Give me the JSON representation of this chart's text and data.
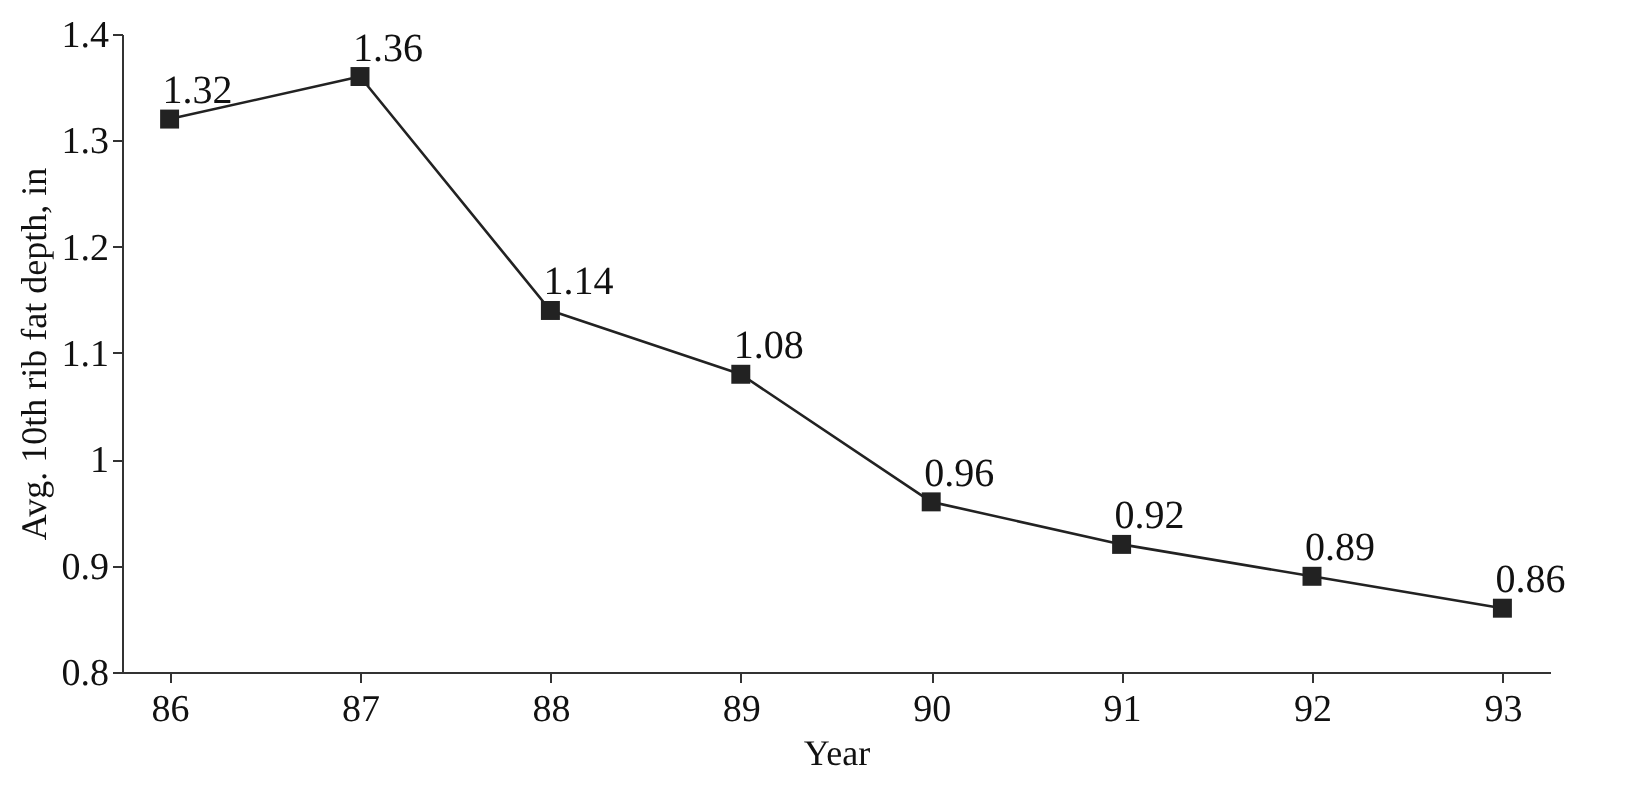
{
  "chart_data": {
    "type": "line",
    "xlabel": "Year",
    "ylabel": "Avg. 10th rib fat depth, in",
    "categories": [
      "86",
      "87",
      "88",
      "89",
      "90",
      "91",
      "92",
      "93"
    ],
    "series": [
      {
        "color": "#222222",
        "values": [
          1.32,
          1.36,
          1.14,
          1.08,
          0.96,
          0.92,
          0.89,
          0.86
        ]
      }
    ],
    "ylim": [
      0.8,
      1.4
    ],
    "yticks": [
      0.8,
      0.9,
      1,
      1.1,
      1.2,
      1.3,
      1.4
    ],
    "marker": "square",
    "line_style": "solid",
    "data_labels": true
  }
}
